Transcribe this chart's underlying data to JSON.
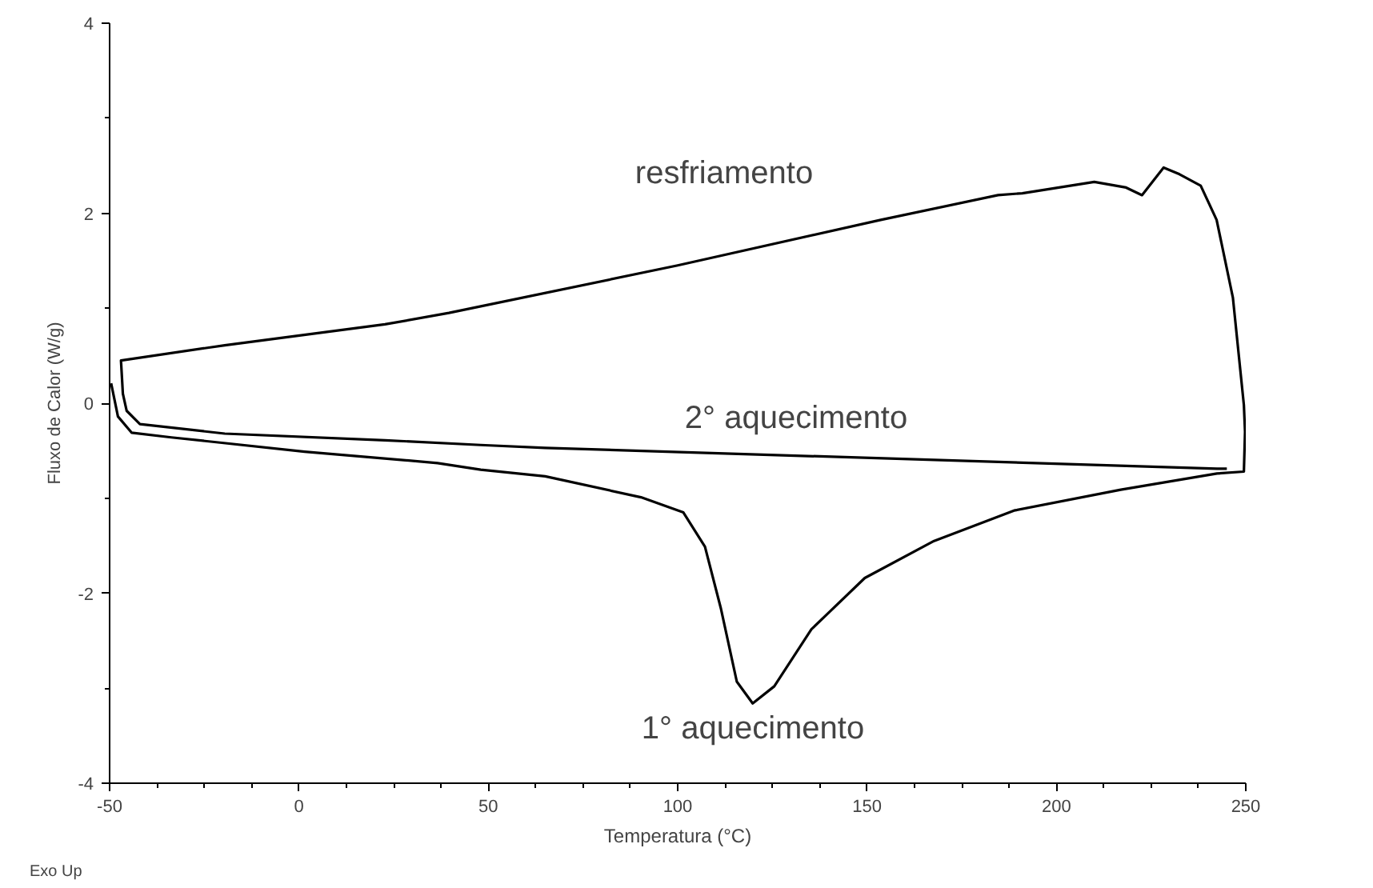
{
  "chart_data": {
    "type": "line",
    "xlabel": "Temperatura (°C)",
    "ylabel": "Fluxo de Calor (W/g)",
    "xlim": [
      -50,
      250
    ],
    "ylim": [
      -4,
      4
    ],
    "xticks": [
      -50,
      {
        "value": -37.5,
        "label": null
      },
      {
        "value": -25,
        "label": null
      },
      {
        "value": -12.5,
        "label": null
      },
      0,
      {
        "value": 12.5,
        "label": null
      },
      {
        "value": 25,
        "label": null
      },
      {
        "value": 37.5,
        "label": null
      },
      50,
      {
        "value": 62.5,
        "label": null
      },
      {
        "value": 75,
        "label": null
      },
      {
        "value": 87.5,
        "label": null
      },
      100,
      {
        "value": 112.5,
        "label": null
      },
      {
        "value": 125,
        "label": null
      },
      {
        "value": 137.5,
        "label": null
      },
      150,
      {
        "value": 162.5,
        "label": null
      },
      {
        "value": 175,
        "label": null
      },
      {
        "value": 187.5,
        "label": null
      },
      200,
      {
        "value": 212.5,
        "label": null
      },
      {
        "value": 225,
        "label": null
      },
      {
        "value": 237.5,
        "label": null
      },
      250
    ],
    "yticks": [
      -4,
      {
        "value": -3,
        "label": null
      },
      -2,
      {
        "value": -1,
        "label": null
      },
      0,
      {
        "value": 1,
        "label": null
      },
      2,
      {
        "value": 3,
        "label": null
      },
      4
    ],
    "grid": false,
    "line_style": "solid",
    "marker": "none",
    "series": [
      {
        "color": "#000000",
        "x": [
          -49.6,
          -47.8,
          -44.2,
          -33.7,
          1.5,
          36.6,
          48,
          65,
          90.3,
          101.5,
          107.2,
          111.4,
          115.6,
          119.8,
          125.5,
          135.3,
          149.4,
          167.7,
          188.8,
          217,
          242.4,
          249.5,
          249.8,
          249.5,
          246.6,
          242.3,
          238.1,
          232.5,
          228.3,
          222.6,
          218.4,
          210,
          191,
          184.6,
          153.6,
          100,
          39.6,
          22.7,
          -19.6,
          -47,
          -46.5,
          -45.5,
          -43,
          -42,
          -19.6,
          22.7,
          48,
          65,
          242.4,
          245
        ],
        "values": [
          0.21,
          -0.14,
          -0.31,
          -0.36,
          -0.51,
          -0.63,
          -0.7,
          -0.77,
          -0.99,
          -1.15,
          -1.51,
          -2.16,
          -2.93,
          -3.16,
          -2.98,
          -2.38,
          -1.84,
          -1.45,
          -1.13,
          -0.91,
          -0.74,
          -0.72,
          -0.3,
          -0.02,
          1.11,
          1.93,
          2.29,
          2.41,
          2.48,
          2.19,
          2.27,
          2.33,
          2.21,
          2.19,
          1.93,
          1.45,
          0.95,
          0.83,
          0.61,
          0.45,
          0.1,
          -0.08,
          -0.18,
          -0.22,
          -0.32,
          -0.39,
          -0.44,
          -0.47,
          -0.69,
          -0.69
        ]
      }
    ],
    "annotations": [
      "resfriamento",
      "2° aquecimento",
      "1° aquecimento",
      "Exo Up"
    ]
  }
}
